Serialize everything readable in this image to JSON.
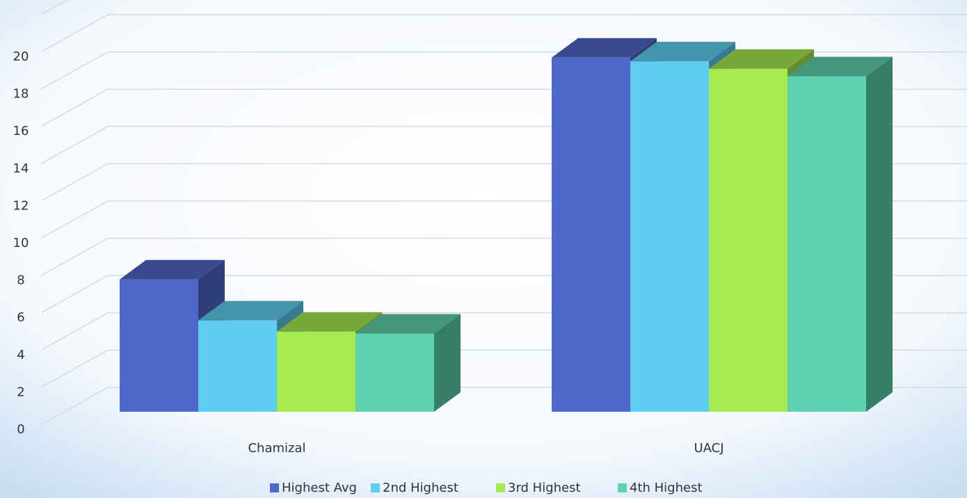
{
  "chart_data": {
    "type": "bar3d",
    "categories": [
      "Chamizal",
      "UACJ"
    ],
    "series": [
      {
        "name": "Highest Avg",
        "color": "#4f67c8",
        "values": [
          7.1,
          19.0
        ]
      },
      {
        "name": "2nd Highest",
        "color": "#5ecdf0",
        "values": [
          4.9,
          18.8
        ]
      },
      {
        "name": "3rd Highest",
        "color": "#a6ea52",
        "values": [
          4.3,
          18.4
        ]
      },
      {
        "name": "4th Highest",
        "color": "#5ed1ae",
        "values": [
          4.2,
          18.0
        ]
      }
    ],
    "ylim": [
      0,
      22
    ],
    "yticks": [
      0,
      2,
      4,
      6,
      8,
      10,
      12,
      14,
      16,
      18,
      20
    ],
    "grid": true,
    "legend": "bottom"
  }
}
